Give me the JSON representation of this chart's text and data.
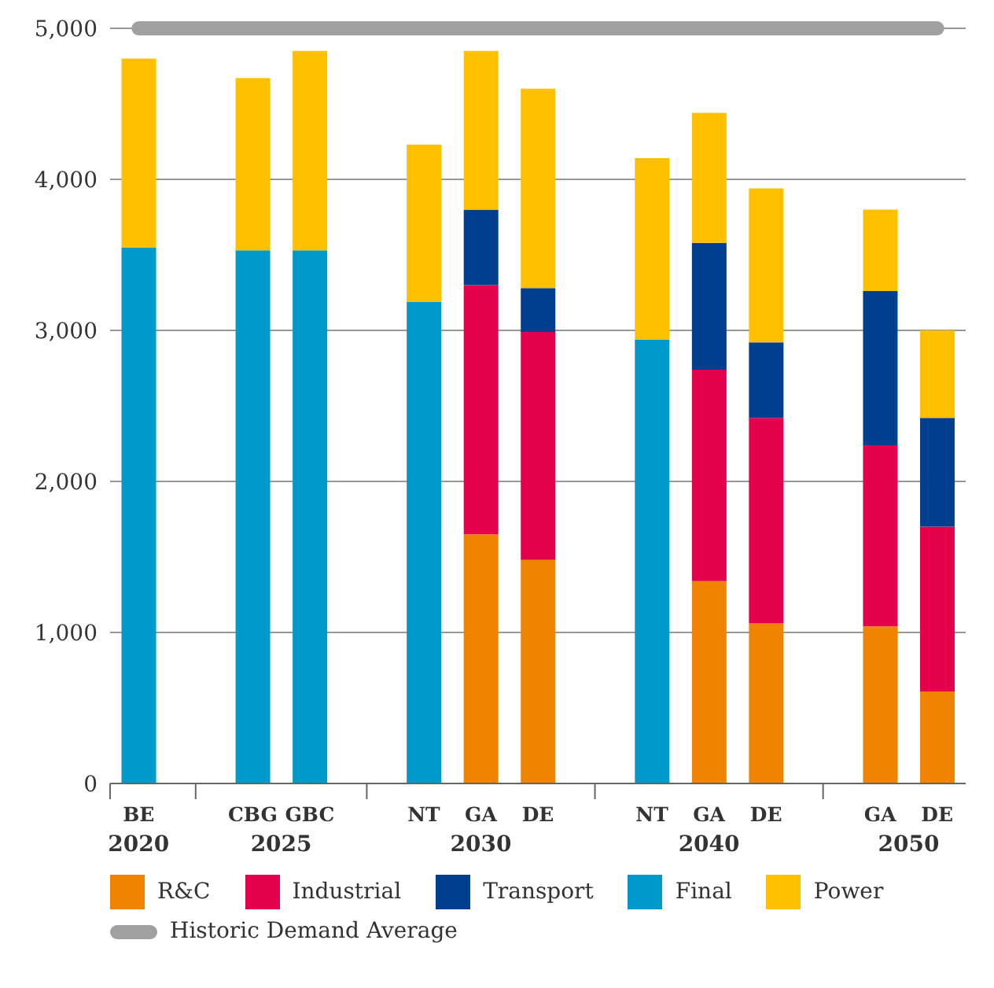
{
  "chart_data": {
    "type": "bar",
    "stacked": true,
    "categories": [
      "BE",
      null,
      "CBG",
      "GBC",
      null,
      "NT",
      "GA",
      "DE",
      null,
      "NT",
      "GA",
      "DE",
      null,
      "GA",
      "DE"
    ],
    "series": [
      {
        "name": "R&C",
        "color": "#f08400",
        "values": [
          null,
          null,
          null,
          null,
          null,
          null,
          1650,
          1480,
          null,
          null,
          1340,
          1060,
          null,
          1040,
          610
        ]
      },
      {
        "name": "Industrial",
        "color": "#e4004b",
        "values": [
          null,
          null,
          null,
          null,
          null,
          null,
          1650,
          1510,
          null,
          null,
          1400,
          1360,
          null,
          1200,
          1090
        ]
      },
      {
        "name": "Transport",
        "color": "#003f8f",
        "values": [
          null,
          null,
          null,
          null,
          null,
          null,
          500,
          290,
          null,
          null,
          840,
          500,
          null,
          1020,
          720
        ]
      },
      {
        "name": "Final",
        "color": "#0099cc",
        "values": [
          3550,
          null,
          3530,
          3530,
          null,
          3190,
          null,
          null,
          null,
          2940,
          null,
          null,
          null,
          null,
          null
        ]
      },
      {
        "name": "Power",
        "color": "#ffc000",
        "values": [
          1250,
          null,
          1140,
          1320,
          null,
          1040,
          1050,
          1320,
          null,
          1200,
          860,
          1020,
          null,
          540,
          580
        ]
      }
    ],
    "ylim": [
      0,
      5000
    ],
    "yticks": [
      {
        "value": 0,
        "label": "0"
      },
      {
        "value": 1000,
        "label": "1,000"
      },
      {
        "value": 2000,
        "label": "2,000"
      },
      {
        "value": 3000,
        "label": "3,000"
      },
      {
        "value": 4000,
        "label": "4,000"
      },
      {
        "value": 5000,
        "label": "5,000"
      }
    ],
    "grid": "y",
    "legend": "bottom",
    "ref_lines": [
      {
        "axis": "y",
        "value": 5000,
        "label": "Historic Demand Average",
        "color": "#a0a0a0"
      }
    ],
    "annotations": [
      "2020",
      "2025",
      "2030",
      "2040",
      "2050"
    ]
  }
}
